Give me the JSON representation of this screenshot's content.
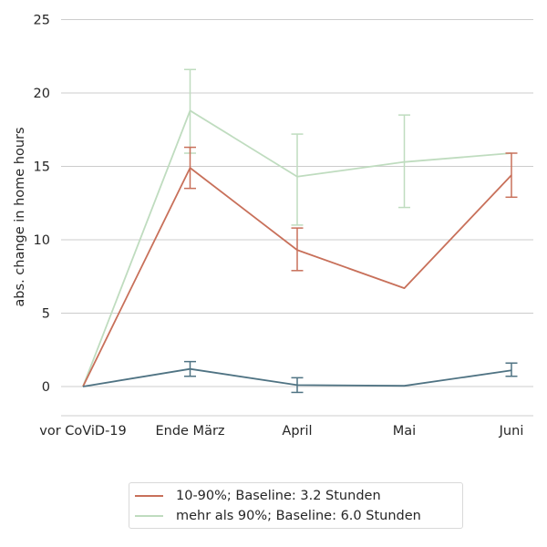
{
  "chart_data": {
    "type": "line",
    "title": "",
    "xlabel": "",
    "ylabel": "abs. change in home hours",
    "categories": [
      "vor CoViD-19",
      "Ende März",
      "April",
      "Mai",
      "Juni"
    ],
    "ylim": [
      -2,
      25
    ],
    "yticks": [
      0,
      5,
      10,
      15,
      20,
      25
    ],
    "grid": "horizontal",
    "legend_position": "bottom-center",
    "series": [
      {
        "name": "10-90%; Baseline: 3.2 Stunden",
        "color": "#c8705a",
        "values": [
          0,
          14.9,
          9.3,
          6.7,
          14.4
        ],
        "err_low": [
          null,
          13.5,
          7.9,
          null,
          12.9
        ],
        "err_high": [
          null,
          16.3,
          10.8,
          null,
          15.9
        ],
        "in_legend": true
      },
      {
        "name": "mehr als 90%; Baseline: 6.0 Stunden",
        "color": "#bfdcbf",
        "values": [
          0,
          18.8,
          14.3,
          15.3,
          15.9
        ],
        "err_low": [
          null,
          15.9,
          11.0,
          12.2,
          null
        ],
        "err_high": [
          null,
          21.6,
          17.2,
          18.5,
          null
        ],
        "in_legend": true
      },
      {
        "name": "",
        "color": "#4f7383",
        "values": [
          0,
          1.2,
          0.1,
          0.05,
          1.1
        ],
        "err_low": [
          null,
          0.7,
          -0.4,
          null,
          0.7
        ],
        "err_high": [
          null,
          1.7,
          0.6,
          null,
          1.6
        ],
        "in_legend": false
      }
    ]
  }
}
